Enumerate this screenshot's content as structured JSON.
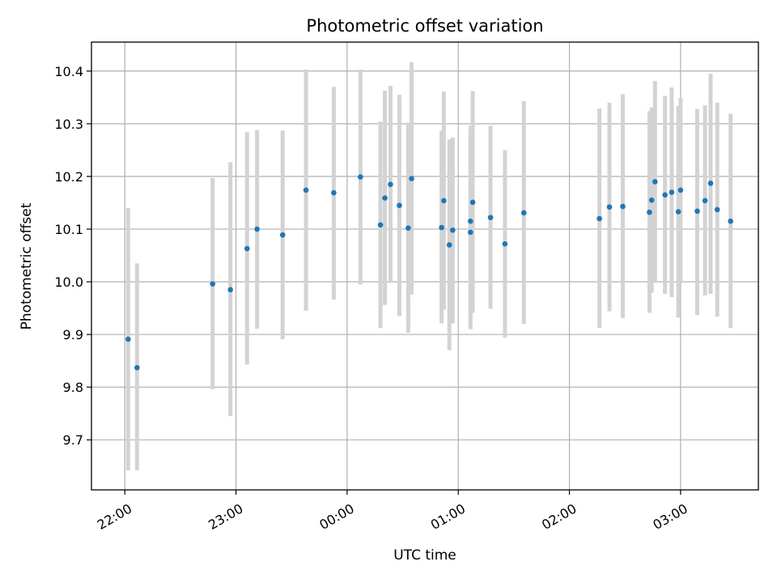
{
  "chart_data": {
    "type": "scatter",
    "title": "Photometric offset variation",
    "xlabel": "UTC time",
    "ylabel": "Photometric offset",
    "x_unit": "hours relative to 00:00 UTC",
    "xlim": [
      -2.3,
      3.7
    ],
    "ylim": [
      9.605,
      10.455
    ],
    "xticks": [
      {
        "value": -2,
        "label": "22:00"
      },
      {
        "value": -1,
        "label": "23:00"
      },
      {
        "value": 0,
        "label": "00:00"
      },
      {
        "value": 1,
        "label": "01:00"
      },
      {
        "value": 2,
        "label": "02:00"
      },
      {
        "value": 3,
        "label": "03:00"
      }
    ],
    "yticks": [
      {
        "value": 9.7,
        "label": "9.7"
      },
      {
        "value": 9.8,
        "label": "9.8"
      },
      {
        "value": 9.9,
        "label": "9.9"
      },
      {
        "value": 10.0,
        "label": "10.0"
      },
      {
        "value": 10.1,
        "label": "10.1"
      },
      {
        "value": 10.2,
        "label": "10.2"
      },
      {
        "value": 10.3,
        "label": "10.3"
      },
      {
        "value": 10.4,
        "label": "10.4"
      }
    ],
    "grid": true,
    "point_color": "#1f77b4",
    "errorbar_color": "#d3d3d3",
    "points": [
      {
        "x": -1.97,
        "y": 9.891,
        "lo": 9.642,
        "hi": 10.14
      },
      {
        "x": -1.89,
        "y": 9.837,
        "lo": 9.642,
        "hi": 10.035
      },
      {
        "x": -1.21,
        "y": 9.996,
        "lo": 9.796,
        "hi": 10.197
      },
      {
        "x": -1.05,
        "y": 9.985,
        "lo": 9.745,
        "hi": 10.227
      },
      {
        "x": -0.9,
        "y": 10.063,
        "lo": 9.843,
        "hi": 10.284
      },
      {
        "x": -0.81,
        "y": 10.1,
        "lo": 9.911,
        "hi": 10.288
      },
      {
        "x": -0.58,
        "y": 10.089,
        "lo": 9.891,
        "hi": 10.287
      },
      {
        "x": -0.37,
        "y": 10.174,
        "lo": 9.945,
        "hi": 10.403
      },
      {
        "x": -0.12,
        "y": 10.169,
        "lo": 9.966,
        "hi": 10.37
      },
      {
        "x": 0.12,
        "y": 10.199,
        "lo": 9.995,
        "hi": 10.403
      },
      {
        "x": 0.3,
        "y": 10.108,
        "lo": 9.912,
        "hi": 10.304
      },
      {
        "x": 0.34,
        "y": 10.159,
        "lo": 9.956,
        "hi": 10.363
      },
      {
        "x": 0.39,
        "y": 10.185,
        "lo": 9.998,
        "hi": 10.372
      },
      {
        "x": 0.47,
        "y": 10.145,
        "lo": 9.935,
        "hi": 10.355
      },
      {
        "x": 0.55,
        "y": 10.102,
        "lo": 9.903,
        "hi": 10.302
      },
      {
        "x": 0.58,
        "y": 10.196,
        "lo": 9.976,
        "hi": 10.417
      },
      {
        "x": 0.85,
        "y": 10.103,
        "lo": 9.921,
        "hi": 10.287
      },
      {
        "x": 0.87,
        "y": 10.154,
        "lo": 9.947,
        "hi": 10.361
      },
      {
        "x": 0.92,
        "y": 10.07,
        "lo": 9.87,
        "hi": 10.27
      },
      {
        "x": 0.95,
        "y": 10.098,
        "lo": 9.921,
        "hi": 10.274
      },
      {
        "x": 1.11,
        "y": 10.115,
        "lo": 9.935,
        "hi": 10.296
      },
      {
        "x": 1.11,
        "y": 10.094,
        "lo": 9.91,
        "hi": 10.277
      },
      {
        "x": 1.13,
        "y": 10.151,
        "lo": 9.941,
        "hi": 10.362
      },
      {
        "x": 1.29,
        "y": 10.122,
        "lo": 9.949,
        "hi": 10.296
      },
      {
        "x": 1.42,
        "y": 10.072,
        "lo": 9.894,
        "hi": 10.25
      },
      {
        "x": 1.59,
        "y": 10.131,
        "lo": 9.92,
        "hi": 10.343
      },
      {
        "x": 2.27,
        "y": 10.12,
        "lo": 9.912,
        "hi": 10.329
      },
      {
        "x": 2.36,
        "y": 10.142,
        "lo": 9.944,
        "hi": 10.34
      },
      {
        "x": 2.48,
        "y": 10.143,
        "lo": 9.931,
        "hi": 10.356
      },
      {
        "x": 2.72,
        "y": 10.132,
        "lo": 9.941,
        "hi": 10.324
      },
      {
        "x": 2.74,
        "y": 10.155,
        "lo": 9.979,
        "hi": 10.331
      },
      {
        "x": 2.77,
        "y": 10.19,
        "lo": 10.0,
        "hi": 10.381
      },
      {
        "x": 2.86,
        "y": 10.165,
        "lo": 9.977,
        "hi": 10.353
      },
      {
        "x": 2.92,
        "y": 10.17,
        "lo": 9.971,
        "hi": 10.369
      },
      {
        "x": 2.98,
        "y": 10.133,
        "lo": 9.932,
        "hi": 10.334
      },
      {
        "x": 3.0,
        "y": 10.174,
        "lo": 10.0,
        "hi": 10.349
      },
      {
        "x": 3.15,
        "y": 10.134,
        "lo": 9.937,
        "hi": 10.328
      },
      {
        "x": 3.22,
        "y": 10.154,
        "lo": 9.974,
        "hi": 10.335
      },
      {
        "x": 3.27,
        "y": 10.187,
        "lo": 9.977,
        "hi": 10.395
      },
      {
        "x": 3.33,
        "y": 10.137,
        "lo": 9.934,
        "hi": 10.34
      },
      {
        "x": 3.45,
        "y": 10.115,
        "lo": 9.912,
        "hi": 10.319
      }
    ]
  }
}
